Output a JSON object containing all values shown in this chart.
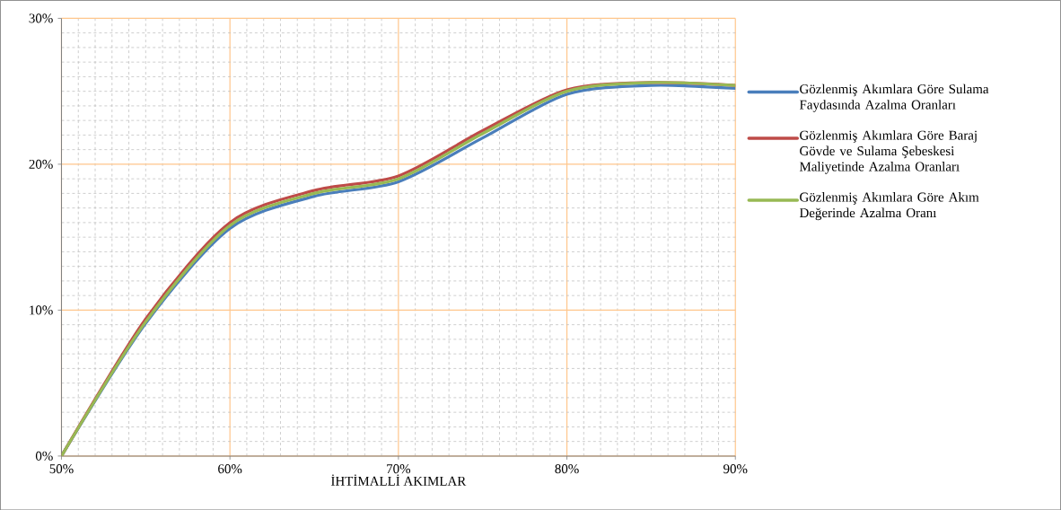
{
  "chart_data": {
    "type": "line",
    "xlabel": "İHTİMALLİ AKIMLAR",
    "x": [
      50,
      55,
      60,
      65,
      70,
      75,
      80,
      85,
      90
    ],
    "series": [
      {
        "name": "Gözlenmiş Akımlara Göre Sulama Faydasında Azalma Oranları",
        "color": "#4a7ebb",
        "values": [
          0,
          9.1,
          15.6,
          17.8,
          18.8,
          21.8,
          24.8,
          25.4,
          25.2
        ]
      },
      {
        "name": "Gözlenmiş Akımlara Göre Baraj Gövde ve Sulama Şebeskesi Maliyetinde Azalma Oranları",
        "color": "#be4b48",
        "values": [
          0,
          9.4,
          16.0,
          18.2,
          19.2,
          22.3,
          25.1,
          25.6,
          25.4
        ]
      },
      {
        "name": "Gözlenmiş Akımlara Göre Akım Değerinde Azalma Oranı",
        "color": "#98b954",
        "values": [
          0,
          9.2,
          15.8,
          18.0,
          19.0,
          22.1,
          25.0,
          25.6,
          25.4
        ]
      }
    ],
    "xlim": [
      50,
      90
    ],
    "ylim": [
      0,
      30
    ],
    "xticks": [
      {
        "value": 50,
        "label": "50%"
      },
      {
        "value": 60,
        "label": "60%"
      },
      {
        "value": 70,
        "label": "70%"
      },
      {
        "value": 80,
        "label": "80%"
      },
      {
        "value": 90,
        "label": "90%"
      }
    ],
    "yticks": [
      {
        "value": 0,
        "label": "0%"
      },
      {
        "value": 10,
        "label": "10%"
      },
      {
        "value": 20,
        "label": "20%"
      },
      {
        "value": 30,
        "label": "30%"
      }
    ],
    "grid": true,
    "legend": "right",
    "line_style": "solid"
  }
}
